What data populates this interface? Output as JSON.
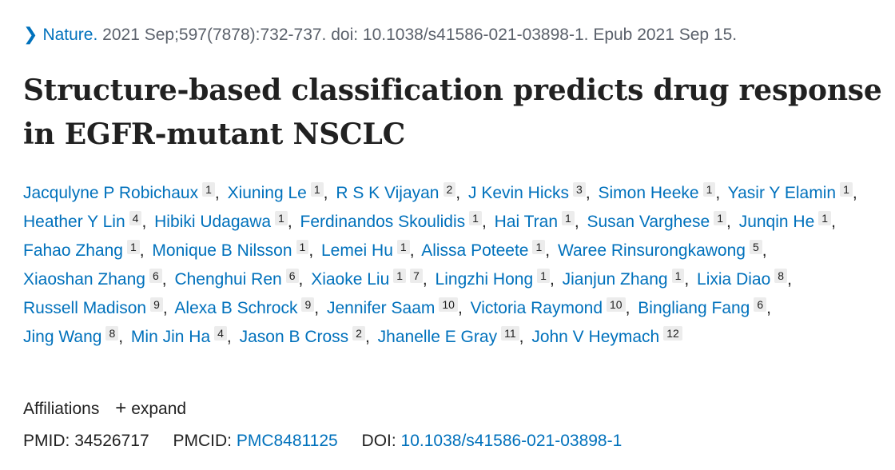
{
  "citation": {
    "journal": "Nature.",
    "details": "2021 Sep;597(7878):732-737. doi: 10.1038/s41586-021-03898-1. Epub 2021 Sep 15."
  },
  "title": "Structure-based classification predicts drug response in EGFR-mutant NSCLC",
  "authors": [
    {
      "name": "Jacqulyne P Robichaux",
      "affs": [
        "1"
      ]
    },
    {
      "name": "Xiuning Le",
      "affs": [
        "1"
      ]
    },
    {
      "name": "R S K Vijayan",
      "affs": [
        "2"
      ]
    },
    {
      "name": "J Kevin Hicks",
      "affs": [
        "3"
      ]
    },
    {
      "name": "Simon Heeke",
      "affs": [
        "1"
      ]
    },
    {
      "name": "Yasir Y Elamin",
      "affs": [
        "1"
      ]
    },
    {
      "name": "Heather Y Lin",
      "affs": [
        "4"
      ]
    },
    {
      "name": "Hibiki Udagawa",
      "affs": [
        "1"
      ]
    },
    {
      "name": "Ferdinandos Skoulidis",
      "affs": [
        "1"
      ]
    },
    {
      "name": "Hai Tran",
      "affs": [
        "1"
      ]
    },
    {
      "name": "Susan Varghese",
      "affs": [
        "1"
      ]
    },
    {
      "name": "Junqin He",
      "affs": [
        "1"
      ]
    },
    {
      "name": "Fahao Zhang",
      "affs": [
        "1"
      ]
    },
    {
      "name": "Monique B Nilsson",
      "affs": [
        "1"
      ]
    },
    {
      "name": "Lemei Hu",
      "affs": [
        "1"
      ]
    },
    {
      "name": "Alissa Poteete",
      "affs": [
        "1"
      ]
    },
    {
      "name": "Waree Rinsurongkawong",
      "affs": [
        "5"
      ]
    },
    {
      "name": "Xiaoshan Zhang",
      "affs": [
        "6"
      ]
    },
    {
      "name": "Chenghui Ren",
      "affs": [
        "6"
      ]
    },
    {
      "name": "Xiaoke Liu",
      "affs": [
        "1",
        "7"
      ]
    },
    {
      "name": "Lingzhi Hong",
      "affs": [
        "1"
      ]
    },
    {
      "name": "Jianjun Zhang",
      "affs": [
        "1"
      ]
    },
    {
      "name": "Lixia Diao",
      "affs": [
        "8"
      ]
    },
    {
      "name": "Russell Madison",
      "affs": [
        "9"
      ]
    },
    {
      "name": "Alexa B Schrock",
      "affs": [
        "9"
      ]
    },
    {
      "name": "Jennifer Saam",
      "affs": [
        "10"
      ]
    },
    {
      "name": "Victoria Raymond",
      "affs": [
        "10"
      ]
    },
    {
      "name": "Bingliang Fang",
      "affs": [
        "6"
      ]
    },
    {
      "name": "Jing Wang",
      "affs": [
        "8"
      ]
    },
    {
      "name": "Min Jin Ha",
      "affs": [
        "4"
      ]
    },
    {
      "name": "Jason B Cross",
      "affs": [
        "2"
      ]
    },
    {
      "name": "Jhanelle E Gray",
      "affs": [
        "11"
      ]
    },
    {
      "name": "John V Heymach",
      "affs": [
        "12"
      ]
    }
  ],
  "affiliations": {
    "label": "Affiliations",
    "expand_icon": "plus-icon",
    "expand_label": "expand"
  },
  "identifiers": {
    "pmid_label": "PMID:",
    "pmid": "34526717",
    "pmcid_label": "PMCID:",
    "pmcid": "PMC8481125",
    "doi_label": "DOI:",
    "doi": "10.1038/s41586-021-03898-1"
  },
  "colors": {
    "link": "#0071bc",
    "text": "#212121",
    "muted": "#5b616b",
    "badge_bg": "#ececec"
  }
}
